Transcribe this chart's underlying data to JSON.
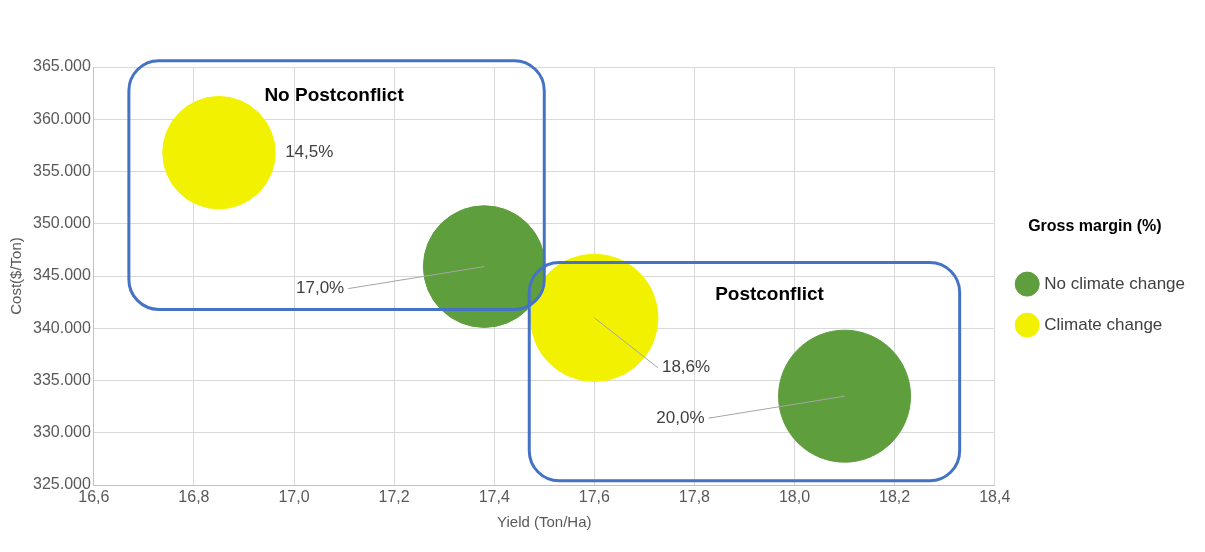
{
  "chart_data": {
    "type": "bubble",
    "xlabel": "Yield (Ton/Ha)",
    "ylabel": "Cost($/Ton)",
    "legend_title": "Gross margin (%)",
    "legend": "right",
    "grid": true,
    "xlim": [
      16.6,
      18.4
    ],
    "xticks": [
      {
        "value": 16.6,
        "label": "16,6"
      },
      {
        "value": 16.8,
        "label": "16,8"
      },
      {
        "value": 17.0,
        "label": "17,0"
      },
      {
        "value": 17.2,
        "label": "17,2"
      },
      {
        "value": 17.4,
        "label": "17,4"
      },
      {
        "value": 17.6,
        "label": "17,6"
      },
      {
        "value": 17.8,
        "label": "17,8"
      },
      {
        "value": 18.0,
        "label": "18,0"
      },
      {
        "value": 18.2,
        "label": "18,2"
      },
      {
        "value": 18.4,
        "label": "18,4"
      }
    ],
    "ylim": [
      325000,
      365000
    ],
    "yticks": [
      {
        "value": 325000,
        "label": "325.000"
      },
      {
        "value": 330000,
        "label": "330.000"
      },
      {
        "value": 335000,
        "label": "335.000"
      },
      {
        "value": 340000,
        "label": "340.000"
      },
      {
        "value": 345000,
        "label": "345.000"
      },
      {
        "value": 350000,
        "label": "350.000"
      },
      {
        "value": 355000,
        "label": "355.000"
      },
      {
        "value": 360000,
        "label": "360.000"
      },
      {
        "value": 365000,
        "label": "365.000"
      }
    ],
    "series": [
      {
        "name": "No climate change",
        "color": "#5e9e3c",
        "x": [
          17.38,
          18.1
        ],
        "values": [
          345900,
          333500
        ],
        "sizes": [
          17.0,
          20.0
        ],
        "value_labels": [
          "17,0%",
          "20,0%"
        ]
      },
      {
        "name": "Climate change",
        "color": "#f2f200",
        "x": [
          16.85,
          17.6
        ],
        "values": [
          356800,
          341000
        ],
        "sizes": [
          14.5,
          18.6
        ],
        "value_labels": [
          "14,5%",
          "18,6%"
        ]
      }
    ],
    "annotations": [
      "No Postconflict",
      "Postconflict"
    ]
  }
}
